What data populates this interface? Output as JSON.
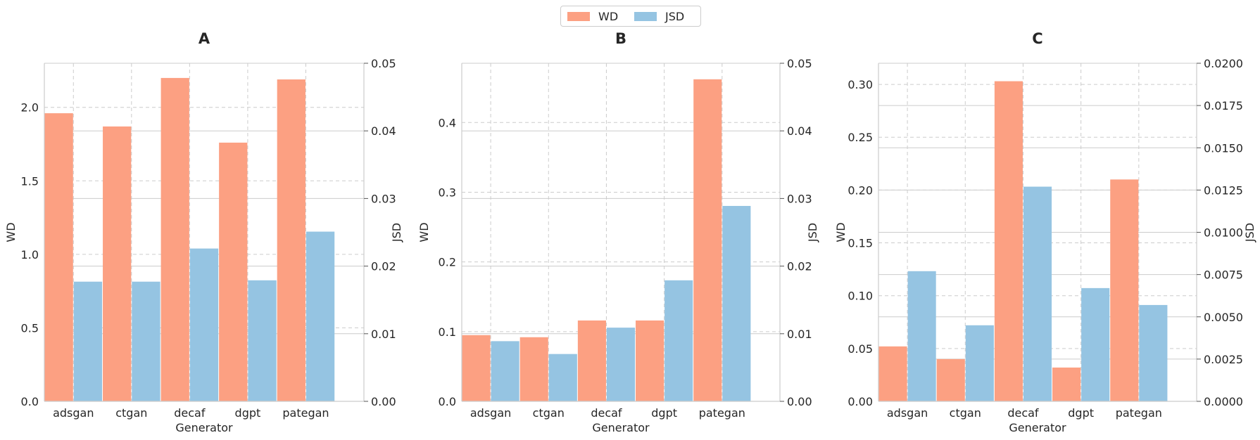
{
  "legend": {
    "wd_label": "WD",
    "jsd_label": "JSD"
  },
  "colors": {
    "wd": "#fca082",
    "jsd": "#95c4e2",
    "grid": "#cccccc",
    "axis": "#cccccc",
    "text": "#262626"
  },
  "chart_data": [
    {
      "type": "bar",
      "title": "A",
      "xlabel": "Generator",
      "ylabel": "WD",
      "ylabel_right": "JSD",
      "categories": [
        "adsgan",
        "ctgan",
        "decaf",
        "dgpt",
        "pategan"
      ],
      "series": [
        {
          "name": "WD",
          "axis": "left",
          "values": [
            1.96,
            1.87,
            2.2,
            1.76,
            2.19
          ]
        },
        {
          "name": "JSD",
          "axis": "right",
          "values": [
            0.0177,
            0.0177,
            0.0226,
            0.0179,
            0.0251
          ]
        }
      ],
      "ylim": [
        0,
        2.3
      ],
      "yticks": [
        "0.0",
        "0.5",
        "1.0",
        "1.5",
        "2.0"
      ],
      "yticks_values": [
        0,
        0.5,
        1.0,
        1.5,
        2.0
      ],
      "ylim_right": [
        0,
        0.05
      ],
      "yticks_right": [
        "0.00",
        "0.01",
        "0.02",
        "0.03",
        "0.04",
        "0.05"
      ],
      "yticks_right_values": [
        0,
        0.01,
        0.02,
        0.03,
        0.04,
        0.05
      ],
      "grid": true
    },
    {
      "type": "bar",
      "title": "B",
      "xlabel": "Generator",
      "ylabel": "WD",
      "ylabel_right": "JSD",
      "categories": [
        "adsgan",
        "ctgan",
        "decaf",
        "dgpt",
        "pategan"
      ],
      "series": [
        {
          "name": "WD",
          "axis": "left",
          "values": [
            0.095,
            0.092,
            0.116,
            0.116,
            0.462
          ]
        },
        {
          "name": "JSD",
          "axis": "right",
          "values": [
            0.0089,
            0.007,
            0.0109,
            0.0179,
            0.0289
          ]
        }
      ],
      "ylim": [
        0,
        0.485
      ],
      "yticks": [
        "0.0",
        "0.1",
        "0.2",
        "0.3",
        "0.4"
      ],
      "yticks_values": [
        0,
        0.1,
        0.2,
        0.3,
        0.4
      ],
      "ylim_right": [
        0,
        0.05
      ],
      "yticks_right": [
        "0.00",
        "0.01",
        "0.02",
        "0.03",
        "0.04",
        "0.05"
      ],
      "yticks_right_values": [
        0,
        0.01,
        0.02,
        0.03,
        0.04,
        0.05
      ],
      "grid": true
    },
    {
      "type": "bar",
      "title": "C",
      "xlabel": "Generator",
      "ylabel": "WD",
      "ylabel_right": "JSD",
      "categories": [
        "adsgan",
        "ctgan",
        "decaf",
        "dgpt",
        "pategan"
      ],
      "series": [
        {
          "name": "WD",
          "axis": "left",
          "values": [
            0.052,
            0.04,
            0.303,
            0.032,
            0.21
          ]
        },
        {
          "name": "JSD",
          "axis": "right",
          "values": [
            0.0077,
            0.0045,
            0.0127,
            0.0067,
            0.0057
          ]
        }
      ],
      "ylim": [
        0,
        0.32
      ],
      "yticks": [
        "0.00",
        "0.05",
        "0.10",
        "0.15",
        "0.20",
        "0.25",
        "0.30"
      ],
      "yticks_values": [
        0,
        0.05,
        0.1,
        0.15,
        0.2,
        0.25,
        0.3
      ],
      "ylim_right": [
        0,
        0.02
      ],
      "yticks_right": [
        "0.0000",
        "0.0025",
        "0.0050",
        "0.0075",
        "0.0100",
        "0.0125",
        "0.0150",
        "0.0175",
        "0.0200"
      ],
      "yticks_right_values": [
        0,
        0.0025,
        0.005,
        0.0075,
        0.01,
        0.0125,
        0.015,
        0.0175,
        0.02
      ],
      "grid": true
    }
  ]
}
